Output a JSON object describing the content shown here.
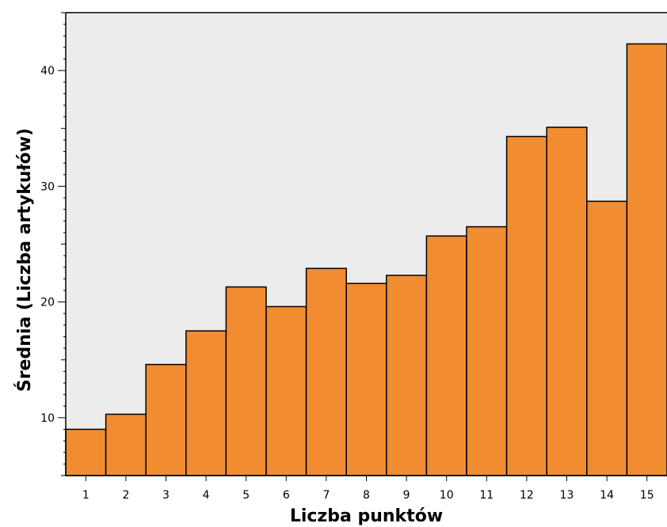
{
  "chart_data": {
    "type": "bar",
    "title": "",
    "xlabel": "Liczba punktów",
    "ylabel": "Średnia (Liczba artykułów)",
    "categories": [
      "1",
      "2",
      "3",
      "4",
      "5",
      "6",
      "7",
      "8",
      "9",
      "10",
      "11",
      "12",
      "13",
      "14",
      "15"
    ],
    "values": [
      9.0,
      10.3,
      14.6,
      17.5,
      21.3,
      19.6,
      22.9,
      21.6,
      22.3,
      25.7,
      26.5,
      34.3,
      35.1,
      28.7,
      42.3
    ],
    "ylim": [
      5,
      45
    ],
    "yticks": [
      "10",
      "20",
      "30",
      "40"
    ],
    "grid": false,
    "colors": {
      "bar": "#f28c31",
      "plot_background": "#ececec",
      "bar_outline": "#000000"
    }
  }
}
